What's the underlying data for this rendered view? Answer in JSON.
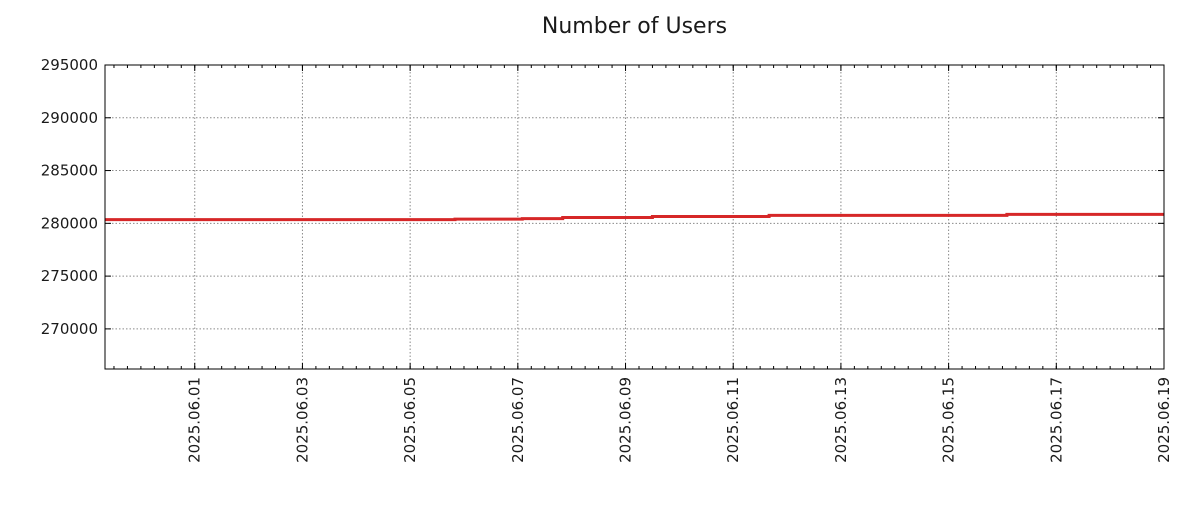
{
  "chart_data": {
    "type": "line",
    "title": "Number of Users",
    "xlabel": "",
    "ylabel": "",
    "x_range": [
      "2025-05-30T08:00",
      "2025-06-19T00:00"
    ],
    "ylim": [
      266200,
      295000
    ],
    "y_ticks": [
      270000,
      275000,
      280000,
      285000,
      290000,
      295000
    ],
    "y_tick_labels": [
      "270000",
      "275000",
      "280000",
      "285000",
      "290000",
      "295000"
    ],
    "x_ticks": [
      "2025-06-01",
      "2025-06-03",
      "2025-06-05",
      "2025-06-07",
      "2025-06-09",
      "2025-06-11",
      "2025-06-13",
      "2025-06-15",
      "2025-06-17",
      "2025-06-19"
    ],
    "x_tick_labels": [
      "2025.06.01",
      "2025.06.03",
      "2025.06.05",
      "2025.06.07",
      "2025.06.09",
      "2025.06.11",
      "2025.06.13",
      "2025.06.15",
      "2025.06.17",
      "2025.06.19"
    ],
    "grid": true,
    "series": [
      {
        "color": "#d62728",
        "x": [
          "2025-05-30T08:00",
          "2025-06-05T20:00",
          "2025-06-07T02:00",
          "2025-06-07T20:00",
          "2025-06-09T12:00",
          "2025-06-11T16:00",
          "2025-06-16T02:00",
          "2025-06-19T00:00"
        ],
        "y": [
          280350,
          280400,
          280450,
          280550,
          280650,
          280750,
          280850,
          280850
        ]
      }
    ]
  }
}
